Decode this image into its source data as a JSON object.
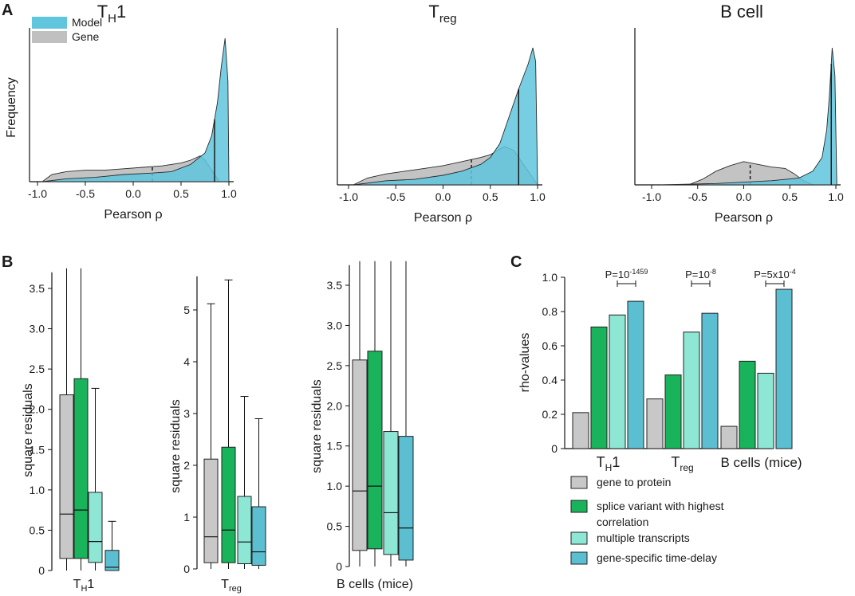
{
  "colors": {
    "gray": "#c8c8c8",
    "green": "#18b35a",
    "mint": "#8ee6d4",
    "teal": "#5cbfd1",
    "model": "#5fc6dd",
    "gene": "#c0c0c0",
    "axis": "#111111"
  },
  "panels": {
    "a": "A",
    "b": "B",
    "c": "C"
  },
  "legend_a": {
    "model": "Model",
    "gene": "Gene"
  },
  "chart_data": [
    {
      "id": "A1",
      "type": "area",
      "title_main": "T",
      "title_sub": "H",
      "title_tail": "1",
      "xlabel": "Pearson ρ",
      "ylabel": "Frequency",
      "xlim": [
        -1.1,
        1.1
      ],
      "ylim": [
        0,
        1
      ],
      "xticks": [
        -1.0,
        -0.5,
        0.0,
        0.5,
        1.0
      ],
      "xtick_labels": [
        "-1.0",
        "-0.5",
        "0.0",
        "0.5",
        "1.0"
      ],
      "series": [
        {
          "name": "Gene",
          "points": [
            [
              -0.95,
              0.0
            ],
            [
              -0.85,
              0.05
            ],
            [
              -0.7,
              0.07
            ],
            [
              -0.5,
              0.08
            ],
            [
              -0.3,
              0.08
            ],
            [
              -0.1,
              0.09
            ],
            [
              0.1,
              0.1
            ],
            [
              0.3,
              0.11
            ],
            [
              0.5,
              0.13
            ],
            [
              0.6,
              0.15
            ],
            [
              0.7,
              0.18
            ],
            [
              0.75,
              0.15
            ],
            [
              0.8,
              0.1
            ],
            [
              0.85,
              0.05
            ],
            [
              0.9,
              0.0
            ]
          ],
          "median": 0.2
        },
        {
          "name": "Model",
          "points": [
            [
              -0.95,
              0.0
            ],
            [
              -0.7,
              0.02
            ],
            [
              -0.4,
              0.03
            ],
            [
              -0.1,
              0.05
            ],
            [
              0.2,
              0.06
            ],
            [
              0.4,
              0.07
            ],
            [
              0.6,
              0.12
            ],
            [
              0.75,
              0.2
            ],
            [
              0.82,
              0.32
            ],
            [
              0.88,
              0.55
            ],
            [
              0.92,
              0.8
            ],
            [
              0.96,
              1.0
            ],
            [
              0.99,
              0.7
            ],
            [
              1.0,
              0.0
            ]
          ],
          "median": 0.85
        }
      ]
    },
    {
      "id": "A2",
      "type": "area",
      "title_main": "T",
      "title_sub": "reg",
      "title_tail": "",
      "xlabel": "Pearson ρ",
      "xlim": [
        -1.1,
        1.1
      ],
      "ylim": [
        0,
        1
      ],
      "xticks": [
        -1.0,
        -0.5,
        0.0,
        0.5,
        1.0
      ],
      "xtick_labels": [
        "-1.0",
        "-0.5",
        "0.0",
        "0.5",
        "1.0"
      ],
      "series": [
        {
          "name": "Gene",
          "points": [
            [
              -0.95,
              0.0
            ],
            [
              -0.8,
              0.05
            ],
            [
              -0.6,
              0.08
            ],
            [
              -0.4,
              0.1
            ],
            [
              -0.2,
              0.12
            ],
            [
              0.0,
              0.14
            ],
            [
              0.2,
              0.17
            ],
            [
              0.4,
              0.2
            ],
            [
              0.5,
              0.22
            ],
            [
              0.6,
              0.26
            ],
            [
              0.65,
              0.28
            ],
            [
              0.75,
              0.25
            ],
            [
              0.85,
              0.15
            ],
            [
              0.95,
              0.05
            ],
            [
              1.0,
              0.0
            ]
          ],
          "median": 0.3
        },
        {
          "name": "Model",
          "points": [
            [
              -0.95,
              0.0
            ],
            [
              -0.6,
              0.03
            ],
            [
              -0.3,
              0.04
            ],
            [
              0.0,
              0.07
            ],
            [
              0.2,
              0.1
            ],
            [
              0.4,
              0.15
            ],
            [
              0.5,
              0.2
            ],
            [
              0.6,
              0.3
            ],
            [
              0.7,
              0.5
            ],
            [
              0.8,
              0.7
            ],
            [
              0.9,
              0.88
            ],
            [
              0.95,
              1.0
            ],
            [
              0.98,
              0.9
            ],
            [
              1.0,
              0.0
            ]
          ],
          "median": 0.8
        }
      ]
    },
    {
      "id": "A3",
      "type": "area",
      "title_main": "B cell",
      "xlabel": "Pearson ρ",
      "xlim": [
        -1.1,
        1.1
      ],
      "ylim": [
        0,
        1
      ],
      "xticks": [
        -1.0,
        -0.5,
        0.0,
        0.5,
        1.0
      ],
      "xtick_labels": [
        "-1.0",
        "-0.5",
        "0.0",
        "0.5",
        "1.0"
      ],
      "series": [
        {
          "name": "Gene",
          "points": [
            [
              -0.6,
              0.0
            ],
            [
              -0.45,
              0.04
            ],
            [
              -0.3,
              0.1
            ],
            [
              -0.15,
              0.14
            ],
            [
              0.0,
              0.17
            ],
            [
              0.15,
              0.15
            ],
            [
              0.3,
              0.13
            ],
            [
              0.45,
              0.12
            ],
            [
              0.55,
              0.08
            ],
            [
              0.65,
              0.03
            ],
            [
              0.75,
              0.0
            ]
          ],
          "median": 0.07
        },
        {
          "name": "Model",
          "points": [
            [
              -0.9,
              0.0
            ],
            [
              -0.3,
              0.01
            ],
            [
              0.0,
              0.02
            ],
            [
              0.3,
              0.03
            ],
            [
              0.6,
              0.05
            ],
            [
              0.75,
              0.1
            ],
            [
              0.85,
              0.2
            ],
            [
              0.9,
              0.4
            ],
            [
              0.93,
              0.65
            ],
            [
              0.96,
              1.0
            ],
            [
              0.99,
              0.8
            ],
            [
              1.01,
              0.0
            ]
          ],
          "median": 0.95
        }
      ]
    },
    {
      "id": "B1",
      "type": "box",
      "ylabel": "square residuals",
      "xlabel_main": "T",
      "xlabel_sub": "H",
      "xlabel_tail": "1",
      "ylim": [
        0,
        3.7
      ],
      "yticks": [
        0,
        0.5,
        1.0,
        1.5,
        2.0,
        2.5,
        3.0,
        3.5
      ],
      "ytick_labels": [
        "0",
        "0.5",
        "1.0",
        "1.5",
        "2.0",
        "2.5",
        "3.0",
        "3.5"
      ],
      "boxes": [
        {
          "group": "gene to protein",
          "whislo": 0,
          "q1": 0.15,
          "med": 0.7,
          "q3": 2.18,
          "whishi": 3.8
        },
        {
          "group": "splice variant with highest correlation",
          "whislo": 0,
          "q1": 0.15,
          "med": 0.75,
          "q3": 2.38,
          "whishi": 3.8
        },
        {
          "group": "multiple transcripts",
          "whislo": 0,
          "q1": 0.1,
          "med": 0.36,
          "q3": 0.97,
          "whishi": 2.26
        },
        {
          "group": "gene-specific time-delay",
          "whislo": 0,
          "q1": 0.0,
          "med": 0.04,
          "q3": 0.25,
          "whishi": 0.61
        }
      ]
    },
    {
      "id": "B2",
      "type": "box",
      "ylabel": "square residuals",
      "xlabel_main": "T",
      "xlabel_sub": "reg",
      "xlabel_tail": "",
      "ylim": [
        0,
        5.65
      ],
      "yticks": [
        0,
        1,
        2,
        3,
        4,
        5
      ],
      "ytick_labels": [
        "0",
        "1",
        "2",
        "3",
        "4",
        "5"
      ],
      "boxes": [
        {
          "group": "gene to protein",
          "whislo": 0,
          "q1": 0.12,
          "med": 0.62,
          "q3": 2.12,
          "whishi": 5.12
        },
        {
          "group": "splice variant with highest correlation",
          "whislo": 0,
          "q1": 0.12,
          "med": 0.75,
          "q3": 2.35,
          "whishi": 5.58
        },
        {
          "group": "multiple transcripts",
          "whislo": 0,
          "q1": 0.1,
          "med": 0.52,
          "q3": 1.4,
          "whishi": 3.33
        },
        {
          "group": "gene-specific time-delay",
          "whislo": 0,
          "q1": 0.07,
          "med": 0.33,
          "q3": 1.2,
          "whishi": 2.9
        }
      ]
    },
    {
      "id": "B3",
      "type": "box",
      "ylabel": "square residuals",
      "xlabel_main": "B cells (mice)",
      "ylim": [
        0,
        3.75
      ],
      "yticks": [
        0,
        0.5,
        1.0,
        1.5,
        2.0,
        2.5,
        3.0,
        3.5
      ],
      "ytick_labels": [
        "0",
        "0.5",
        "1.0",
        "1.5",
        "2.0",
        "2.5",
        "3.0",
        "3.5"
      ],
      "boxes": [
        {
          "group": "gene to protein",
          "whislo": 0,
          "q1": 0.2,
          "med": 0.94,
          "q3": 2.57,
          "whishi": 3.8
        },
        {
          "group": "splice variant with highest correlation",
          "whislo": 0,
          "q1": 0.22,
          "med": 1.0,
          "q3": 2.68,
          "whishi": 3.8
        },
        {
          "group": "multiple transcripts",
          "whislo": 0,
          "q1": 0.15,
          "med": 0.67,
          "q3": 1.68,
          "whishi": 3.8
        },
        {
          "group": "gene-specific time-delay",
          "whislo": 0,
          "q1": 0.08,
          "med": 0.48,
          "q3": 1.62,
          "whishi": 3.8
        }
      ]
    },
    {
      "id": "C",
      "type": "bar",
      "ylabel": "rho-values",
      "ylim": [
        0,
        1.0
      ],
      "yticks": [
        0,
        0.2,
        0.4,
        0.6,
        0.8,
        1.0
      ],
      "ytick_labels": [
        "0",
        "0.2",
        "0.4",
        "0.6",
        "0.8",
        "1.0"
      ],
      "groups": [
        {
          "label_main": "T",
          "label_sub": "H",
          "label_tail": "1",
          "values": [
            0.21,
            0.71,
            0.78,
            0.86
          ],
          "pvalue_base": "P=10",
          "pvalue_exp": "-1459"
        },
        {
          "label_main": "T",
          "label_sub": "reg",
          "label_tail": "",
          "values": [
            0.29,
            0.43,
            0.68,
            0.79
          ],
          "pvalue_base": "P=10",
          "pvalue_exp": "-8"
        },
        {
          "label_main": "B cells (mice)",
          "label_sub": "",
          "label_tail": "",
          "values": [
            0.13,
            0.51,
            0.44,
            0.93
          ],
          "pvalue_base": "P=5x10",
          "pvalue_exp": "-4"
        }
      ],
      "legend": [
        {
          "text": "gene to protein"
        },
        {
          "text": "splice variant with highest",
          "text2": "correlation"
        },
        {
          "text": "multiple transcripts"
        },
        {
          "text": "gene-specific time-delay"
        }
      ]
    }
  ]
}
